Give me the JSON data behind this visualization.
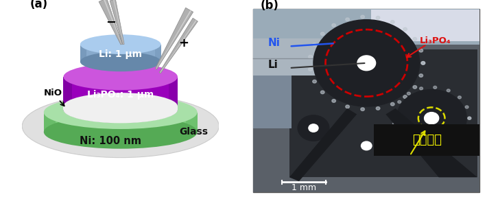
{
  "fig_width": 7.1,
  "fig_height": 2.87,
  "dpi": 100,
  "bg_color": "#ffffff",
  "panel_a": {
    "label": "(a)",
    "minus_label": "−",
    "plus_label": "+",
    "ni_label": "Ni: 100 nm",
    "li3po4_label": "Li₃PO₄: 1 μm",
    "li_label": "Li: 1 μm",
    "nio_label": "NiO",
    "glass_label": "Glass",
    "glass_bg": "#e0e0e0",
    "ni_top": "#a8e0a8",
    "ni_body": "#7acc7a",
    "ni_dark": "#55aa55",
    "po4_top": "#cc55dd",
    "po4_body": "#9900bb",
    "po4_dark": "#660088",
    "li_top": "#aaccee",
    "li_body": "#88aacc",
    "li_dark": "#6688aa",
    "white_band": "#f0f0f0"
  },
  "panel_b": {
    "label": "(b)",
    "ni_text": "Ni",
    "li_text": "Li",
    "li3po4_text": "Li₃PO₄",
    "annotation_text": "動作領域",
    "scale_bar_text": "1 mm",
    "ni_label_color": "#2255ee",
    "li_label_color": "#111111",
    "li3po4_label_color": "#dd1111",
    "annotation_color": "#ffff00",
    "annotation_bg": "#111111",
    "red_circle": "#cc0000",
    "yellow_circle": "#dddd00"
  }
}
